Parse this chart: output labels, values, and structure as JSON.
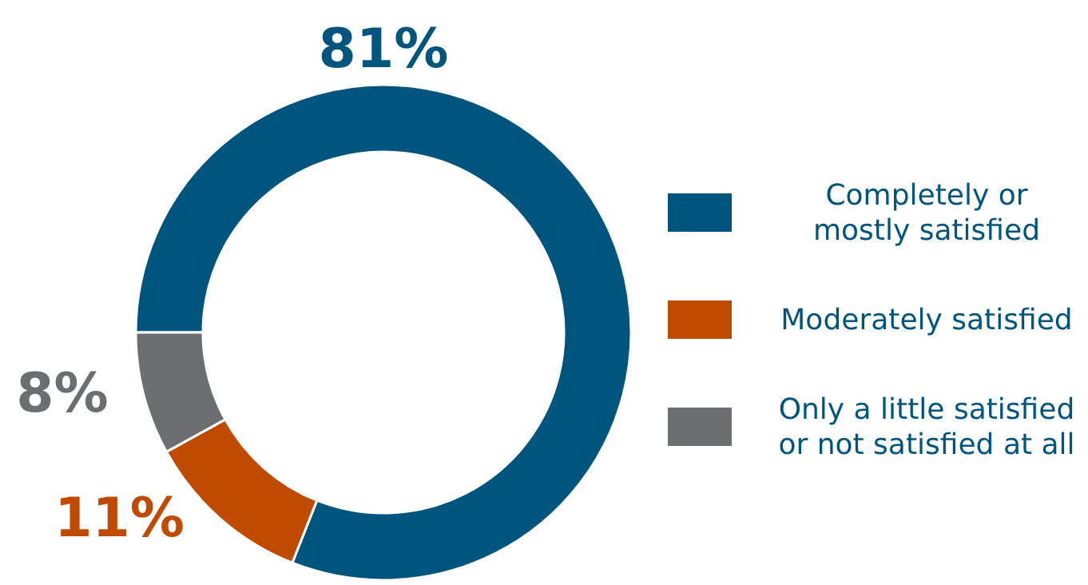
{
  "chart_data": {
    "type": "donut",
    "categories": [
      "Completely or mostly satisfied",
      "Moderately satisfied",
      "Only a little satisfied or not satisfied at all"
    ],
    "values": [
      81,
      11,
      8
    ],
    "colors": [
      "#00557f",
      "#c04a00",
      "#6d6e70"
    ],
    "value_labels": [
      "81%",
      "11%",
      "8%"
    ],
    "legend": "right"
  }
}
